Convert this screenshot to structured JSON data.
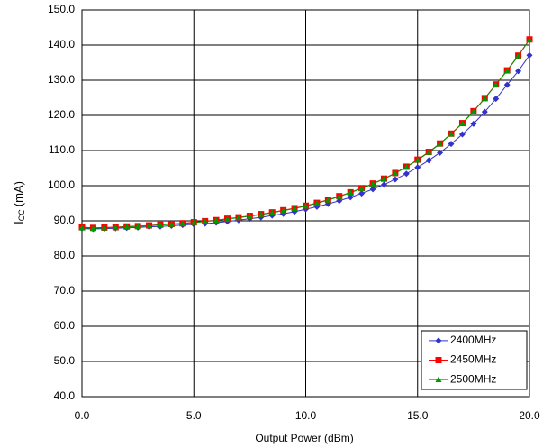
{
  "chart_data": {
    "type": "line",
    "xlabel": "Output Power (dBm)",
    "ylabel": {
      "main": "I",
      "sub": "CC",
      "unit": "(mA)"
    },
    "x": [
      0,
      0.5,
      1,
      1.5,
      2,
      2.5,
      3,
      3.5,
      4,
      4.5,
      5,
      5.5,
      6,
      6.5,
      7,
      7.5,
      8,
      8.5,
      9,
      9.5,
      10,
      10.5,
      11,
      11.5,
      12,
      12.5,
      13,
      13.5,
      14,
      14.5,
      15,
      15.5,
      16,
      16.5,
      17,
      17.5,
      18,
      18.5,
      19,
      19.5,
      20
    ],
    "series": [
      {
        "name": "2400MHz",
        "color": "#3333cc",
        "marker": "diamond",
        "values": [
          87.8,
          87.7,
          87.8,
          87.9,
          88.0,
          88.1,
          88.3,
          88.4,
          88.6,
          88.8,
          89.0,
          89.2,
          89.5,
          89.8,
          90.2,
          90.6,
          91.0,
          91.5,
          92.0,
          92.6,
          93.3,
          94.0,
          94.8,
          95.7,
          96.7,
          97.8,
          99.0,
          100.3,
          101.8,
          103.4,
          105.2,
          107.2,
          109.4,
          111.9,
          114.6,
          117.6,
          121.0,
          124.7,
          128.7,
          132.6,
          137.1
        ]
      },
      {
        "name": "2450MHz",
        "color": "#ff0000",
        "marker": "square",
        "values": [
          88.2,
          88.0,
          88.1,
          88.2,
          88.4,
          88.5,
          88.7,
          88.9,
          89.1,
          89.3,
          89.6,
          89.9,
          90.2,
          90.6,
          91.0,
          91.4,
          91.9,
          92.4,
          93.0,
          93.6,
          94.3,
          95.1,
          96.0,
          97.0,
          98.1,
          99.3,
          100.6,
          102.0,
          103.6,
          105.4,
          107.4,
          109.6,
          112.0,
          114.8,
          117.8,
          121.2,
          124.9,
          128.8,
          132.8,
          137.0,
          141.6
        ]
      },
      {
        "name": "2500MHz",
        "color": "#009900",
        "marker": "triangle",
        "values": [
          88.0,
          87.9,
          88.0,
          88.1,
          88.3,
          88.4,
          88.6,
          88.8,
          89.0,
          89.2,
          89.5,
          89.8,
          90.1,
          90.5,
          90.9,
          91.3,
          91.8,
          92.3,
          92.9,
          93.5,
          94.2,
          95.0,
          95.9,
          96.9,
          98.0,
          99.2,
          100.5,
          101.9,
          103.5,
          105.3,
          107.3,
          109.5,
          111.9,
          114.7,
          117.7,
          121.1,
          124.8,
          128.7,
          132.7,
          136.9,
          141.5
        ]
      }
    ],
    "xlim": [
      0,
      20
    ],
    "xticks": [
      {
        "value": 0,
        "label": "0.0"
      },
      {
        "value": 5,
        "label": "5.0"
      },
      {
        "value": 10,
        "label": "10.0"
      },
      {
        "value": 15,
        "label": "15.0"
      },
      {
        "value": 20,
        "label": "20.0"
      }
    ],
    "ylim": [
      40,
      150
    ],
    "yticks": [
      {
        "value": 40,
        "label": "40.0"
      },
      {
        "value": 50,
        "label": "50.0"
      },
      {
        "value": 60,
        "label": "60.0"
      },
      {
        "value": 70,
        "label": "70.0"
      },
      {
        "value": 80,
        "label": "80.0"
      },
      {
        "value": 90,
        "label": "90.0"
      },
      {
        "value": 100,
        "label": "100.0"
      },
      {
        "value": 110,
        "label": "110.0"
      },
      {
        "value": 120,
        "label": "120.0"
      },
      {
        "value": 130,
        "label": "130.0"
      },
      {
        "value": 140,
        "label": "140.0"
      },
      {
        "value": 150,
        "label": "150.0"
      }
    ],
    "grid": true,
    "legend": "lower right"
  }
}
